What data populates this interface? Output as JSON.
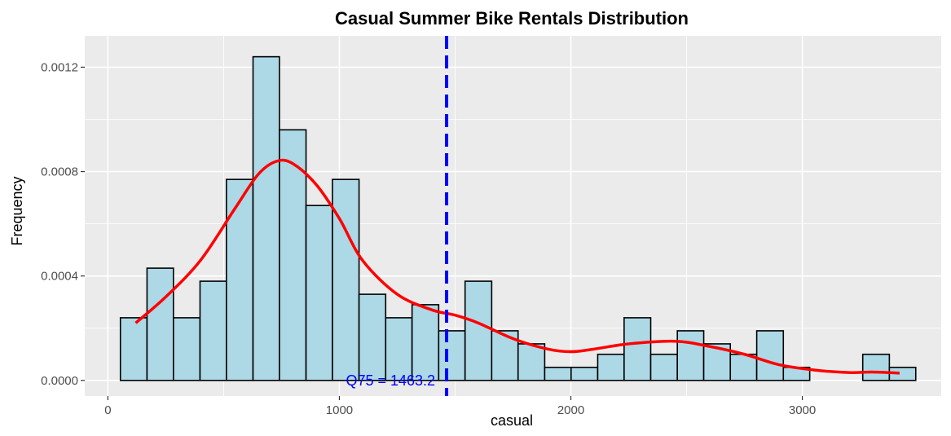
{
  "chart_data": {
    "type": "bar",
    "title": "Casual Summer Bike Rentals Distribution",
    "xlabel": "casual",
    "ylabel": "Frequency",
    "xlim": [
      -100,
      3600
    ],
    "ylim": [
      -6e-05,
      0.00132
    ],
    "x_ticks": [
      0,
      1000,
      2000,
      3000
    ],
    "x_tick_labels": [
      "0",
      "1000",
      "2000",
      "3000"
    ],
    "y_ticks": [
      0.0,
      0.0004,
      0.0008,
      0.0012
    ],
    "y_tick_labels": [
      "0.0000",
      "0.0004",
      "0.0008",
      "0.0012"
    ],
    "grid": true,
    "colors": {
      "panel": "#ebebeb",
      "grid": "#ffffff",
      "bar_fill": "#add8e6",
      "bar_stroke": "#000000",
      "density": "#ff0000",
      "vline": "#0000ff"
    },
    "bins": [
      {
        "x0": 54,
        "x1": 169,
        "value": 0.00024
      },
      {
        "x0": 169,
        "x1": 283,
        "value": 0.00043
      },
      {
        "x0": 283,
        "x1": 398,
        "value": 0.00024
      },
      {
        "x0": 398,
        "x1": 512,
        "value": 0.00038
      },
      {
        "x0": 512,
        "x1": 627,
        "value": 0.00077
      },
      {
        "x0": 627,
        "x1": 741,
        "value": 0.00124
      },
      {
        "x0": 741,
        "x1": 856,
        "value": 0.00096
      },
      {
        "x0": 856,
        "x1": 970,
        "value": 0.00067
      },
      {
        "x0": 970,
        "x1": 1085,
        "value": 0.00077
      },
      {
        "x0": 1085,
        "x1": 1200,
        "value": 0.00033
      },
      {
        "x0": 1200,
        "x1": 1314,
        "value": 0.00024
      },
      {
        "x0": 1314,
        "x1": 1429,
        "value": 0.00029
      },
      {
        "x0": 1429,
        "x1": 1543,
        "value": 0.00019
      },
      {
        "x0": 1543,
        "x1": 1658,
        "value": 0.00038
      },
      {
        "x0": 1658,
        "x1": 1772,
        "value": 0.00019
      },
      {
        "x0": 1772,
        "x1": 1887,
        "value": 0.00014
      },
      {
        "x0": 1887,
        "x1": 2001,
        "value": 5e-05
      },
      {
        "x0": 2001,
        "x1": 2116,
        "value": 5e-05
      },
      {
        "x0": 2116,
        "x1": 2230,
        "value": 0.0001
      },
      {
        "x0": 2230,
        "x1": 2345,
        "value": 0.00024
      },
      {
        "x0": 2345,
        "x1": 2460,
        "value": 0.0001
      },
      {
        "x0": 2460,
        "x1": 2574,
        "value": 0.00019
      },
      {
        "x0": 2574,
        "x1": 2689,
        "value": 0.00014
      },
      {
        "x0": 2689,
        "x1": 2803,
        "value": 0.0001
      },
      {
        "x0": 2803,
        "x1": 2918,
        "value": 0.00019
      },
      {
        "x0": 2918,
        "x1": 3032,
        "value": 5e-05
      },
      {
        "x0": 3032,
        "x1": 3147,
        "value": 0.0
      },
      {
        "x0": 3147,
        "x1": 3261,
        "value": 0.0
      },
      {
        "x0": 3261,
        "x1": 3376,
        "value": 0.0001
      },
      {
        "x0": 3376,
        "x1": 3490,
        "value": 5e-05
      }
    ],
    "density": {
      "x": [
        120,
        250,
        400,
        550,
        650,
        730,
        800,
        900,
        1000,
        1100,
        1250,
        1400,
        1500,
        1600,
        1750,
        1900,
        2000,
        2100,
        2250,
        2450,
        2600,
        2750,
        2900,
        3050,
        3200,
        3300,
        3420
      ],
      "y": [
        0.00022,
        0.00032,
        0.00046,
        0.00066,
        0.00079,
        0.00084,
        0.00083,
        0.00075,
        0.00062,
        0.00046,
        0.00033,
        0.00027,
        0.00025,
        0.00022,
        0.00016,
        0.00012,
        0.00011,
        0.00012,
        0.00014,
        0.00015,
        0.00013,
        0.0001,
        6e-05,
        4e-05,
        3e-05,
        3.2e-05,
        2.8e-05
      ]
    },
    "vline": {
      "x": 1463.2,
      "label": "Q75 = 1463.2"
    }
  }
}
